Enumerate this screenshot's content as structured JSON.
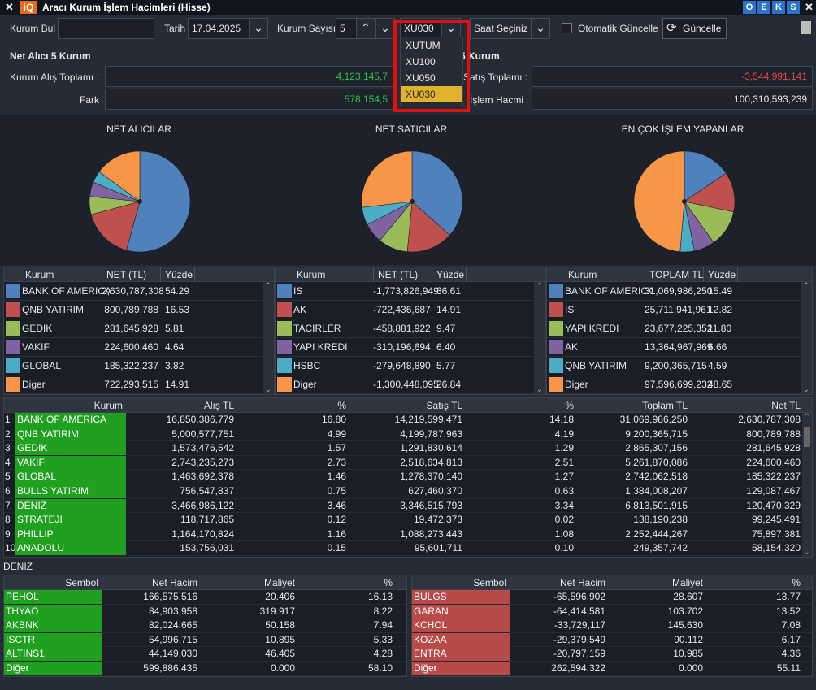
{
  "window": {
    "title": "Aracı Kurum İşlem Hacimleri (Hisse)",
    "logo": "iQ",
    "close": "✕",
    "buttons": [
      "O",
      "E",
      "K",
      "S"
    ]
  },
  "toolbar": {
    "kurum_bul_label": "Kurum Bul",
    "kurum_bul_value": "",
    "tarih_label": "Tarih",
    "tarih_value": "17.04.2025",
    "kurum_sayisi_label": "Kurum Sayısı",
    "kurum_sayisi_value": "5",
    "index_value": "XU030",
    "saat_label": "Saat Seçiniz",
    "oto_label": "Otomatik Güncelle",
    "guncelle_label": "Güncelle"
  },
  "dropdown": {
    "options": [
      "XUTUM",
      "XU100",
      "XU050",
      "XU030"
    ],
    "selected": "XU030"
  },
  "summary": {
    "left_title": "Net Alıcı 5 Kurum",
    "right_title": "5 Kurum",
    "alis_label": "Kurum Alış Toplamı :",
    "alis_value": "4,123,145,7",
    "fark_label": "Fark",
    "fark_value": "578,154,5",
    "satis_label": "Satış Toplamı :",
    "satis_value": "-3,544,991,141",
    "hacim_label": "İşlem Hacmi",
    "hacim_value": "100,310,593,239"
  },
  "pies": [
    {
      "title": "NET ALICILAR",
      "slices": [
        54.29,
        16.53,
        5.81,
        4.64,
        3.82,
        14.91
      ],
      "colors": [
        "#4f81bd",
        "#c0504d",
        "#9bbb59",
        "#8064a2",
        "#4bacc6",
        "#f79646"
      ]
    },
    {
      "title": "NET SATICILAR",
      "slices": [
        36.61,
        14.91,
        9.47,
        6.4,
        5.77,
        26.84
      ],
      "colors": [
        "#4f81bd",
        "#c0504d",
        "#9bbb59",
        "#8064a2",
        "#4bacc6",
        "#f79646"
      ]
    },
    {
      "title": "EN ÇOK İŞLEM YAPANLAR",
      "slices": [
        15.49,
        12.82,
        11.8,
        6.66,
        4.59,
        48.65
      ],
      "colors": [
        "#4f81bd",
        "#c0504d",
        "#9bbb59",
        "#8064a2",
        "#4bacc6",
        "#f79646"
      ]
    }
  ],
  "small_tables": [
    {
      "headers": [
        "Kurum",
        "NET (TL)",
        "Yüzde"
      ],
      "rows": [
        {
          "name": "BANK OF AMERICA",
          "val": "2,630,787,308",
          "pct": "54.29",
          "color": "#4f81bd"
        },
        {
          "name": "QNB YATIRIM",
          "val": "800,789,788",
          "pct": "16.53",
          "color": "#c0504d"
        },
        {
          "name": "GEDIK",
          "val": "281,645,928",
          "pct": "5.81",
          "color": "#9bbb59"
        },
        {
          "name": "VAKIF",
          "val": "224,600,460",
          "pct": "4.64",
          "color": "#8064a2"
        },
        {
          "name": "GLOBAL",
          "val": "185,322,237",
          "pct": "3.82",
          "color": "#4bacc6"
        },
        {
          "name": "Diger",
          "val": "722,293,515",
          "pct": "14.91",
          "color": "#f79646"
        }
      ]
    },
    {
      "headers": [
        "Kurum",
        "NET (TL)",
        "Yüzde"
      ],
      "rows": [
        {
          "name": "IS",
          "val": "-1,773,826,949",
          "pct": "36.61",
          "color": "#4f81bd"
        },
        {
          "name": "AK",
          "val": "-722,436,687",
          "pct": "14.91",
          "color": "#c0504d"
        },
        {
          "name": "TACIRLER",
          "val": "-458,881,922",
          "pct": "9.47",
          "color": "#9bbb59"
        },
        {
          "name": "YAPI KREDI",
          "val": "-310,196,694",
          "pct": "6.40",
          "color": "#8064a2"
        },
        {
          "name": "HSBC",
          "val": "-279,648,890",
          "pct": "5.77",
          "color": "#4bacc6"
        },
        {
          "name": "Diger",
          "val": "-1,300,448,095",
          "pct": "26.84",
          "color": "#f79646"
        }
      ]
    },
    {
      "headers": [
        "Kurum",
        "TOPLAM TL",
        "Yüzde"
      ],
      "rows": [
        {
          "name": "BANK OF AMERICA",
          "val": "31,069,986,250",
          "pct": "15.49",
          "color": "#4f81bd"
        },
        {
          "name": "IS",
          "val": "25,711,941,961",
          "pct": "12.82",
          "color": "#c0504d"
        },
        {
          "name": "YAPI KREDI",
          "val": "23,677,225,352",
          "pct": "11.80",
          "color": "#9bbb59"
        },
        {
          "name": "AK",
          "val": "13,364,967,969",
          "pct": "6.66",
          "color": "#8064a2"
        },
        {
          "name": "QNB YATIRIM",
          "val": "9,200,365,715",
          "pct": "4.59",
          "color": "#4bacc6"
        },
        {
          "name": "Diger",
          "val": "97,596,699,232",
          "pct": "48.65",
          "color": "#f79646"
        }
      ]
    }
  ],
  "main_table": {
    "headers": [
      "Kurum",
      "Alış TL",
      "%",
      "Satış TL",
      "%",
      "Toplam TL",
      "Net TL"
    ],
    "rows": [
      [
        "1",
        "BANK OF AMERICA",
        "16,850,386,779",
        "16.80",
        "14,219,599,471",
        "14.18",
        "31,069,986,250",
        "2,630,787,308"
      ],
      [
        "2",
        "QNB YATIRIM",
        "5,000,577,751",
        "4.99",
        "4,199,787,963",
        "4.19",
        "9,200,365,715",
        "800,789,788"
      ],
      [
        "3",
        "GEDIK",
        "1,573,476,542",
        "1.57",
        "1,291,830,614",
        "1.29",
        "2,865,307,156",
        "281,645,928"
      ],
      [
        "4",
        "VAKIF",
        "2,743,235,273",
        "2.73",
        "2,518,634,813",
        "2.51",
        "5,261,870,086",
        "224,600,460"
      ],
      [
        "5",
        "GLOBAL",
        "1,463,692,378",
        "1.46",
        "1,278,370,140",
        "1.27",
        "2,742,062,518",
        "185,322,237"
      ],
      [
        "6",
        "BULLS YATIRIM",
        "756,547,837",
        "0.75",
        "627,460,370",
        "0.63",
        "1,384,008,207",
        "129,087,467"
      ],
      [
        "7",
        "DENIZ",
        "3,466,986,122",
        "3.46",
        "3,346,515,793",
        "3.34",
        "6,813,501,915",
        "120,470,329"
      ],
      [
        "8",
        "STRATEJI",
        "118,717,865",
        "0.12",
        "19,472,373",
        "0.02",
        "138,190,238",
        "99,245,491"
      ],
      [
        "9",
        "PHILLIP",
        "1,164,170,824",
        "1.16",
        "1,088,273,443",
        "1.08",
        "2,252,444,267",
        "75,897,381"
      ],
      [
        "10",
        "ANADOLU",
        "153,756,031",
        "0.15",
        "95,601,711",
        "0.10",
        "249,357,742",
        "58,154,320"
      ]
    ]
  },
  "bottom": {
    "label": "DENIZ",
    "headers": [
      "Sembol",
      "Net Hacim",
      "Maliyet",
      "%"
    ],
    "left_rows": [
      [
        "PEHOL",
        "166,575,516",
        "20.406",
        "16.13"
      ],
      [
        "THYAO",
        "84,903,958",
        "319.917",
        "8.22"
      ],
      [
        "AKBNK",
        "82,024,665",
        "50.158",
        "7.94"
      ],
      [
        "ISCTR",
        "54,996,715",
        "10.895",
        "5.33"
      ],
      [
        "ALTINS1",
        "44,149,030",
        "46.405",
        "4.28"
      ],
      [
        "Diğer",
        "599,886,435",
        "0.000",
        "58.10"
      ]
    ],
    "right_rows": [
      [
        "BULGS",
        "-65,596,902",
        "28.607",
        "13.77"
      ],
      [
        "GARAN",
        "-64,414,581",
        "103.702",
        "13.52"
      ],
      [
        "KCHOL",
        "-33,729,117",
        "145.630",
        "7.08"
      ],
      [
        "KOZAA",
        "-29,379,549",
        "90.112",
        "6.17"
      ],
      [
        "ENTRA",
        "-20,797,159",
        "10.985",
        "4.36"
      ],
      [
        "Diğer",
        "262,594,322",
        "0.000",
        "55.11"
      ]
    ]
  }
}
